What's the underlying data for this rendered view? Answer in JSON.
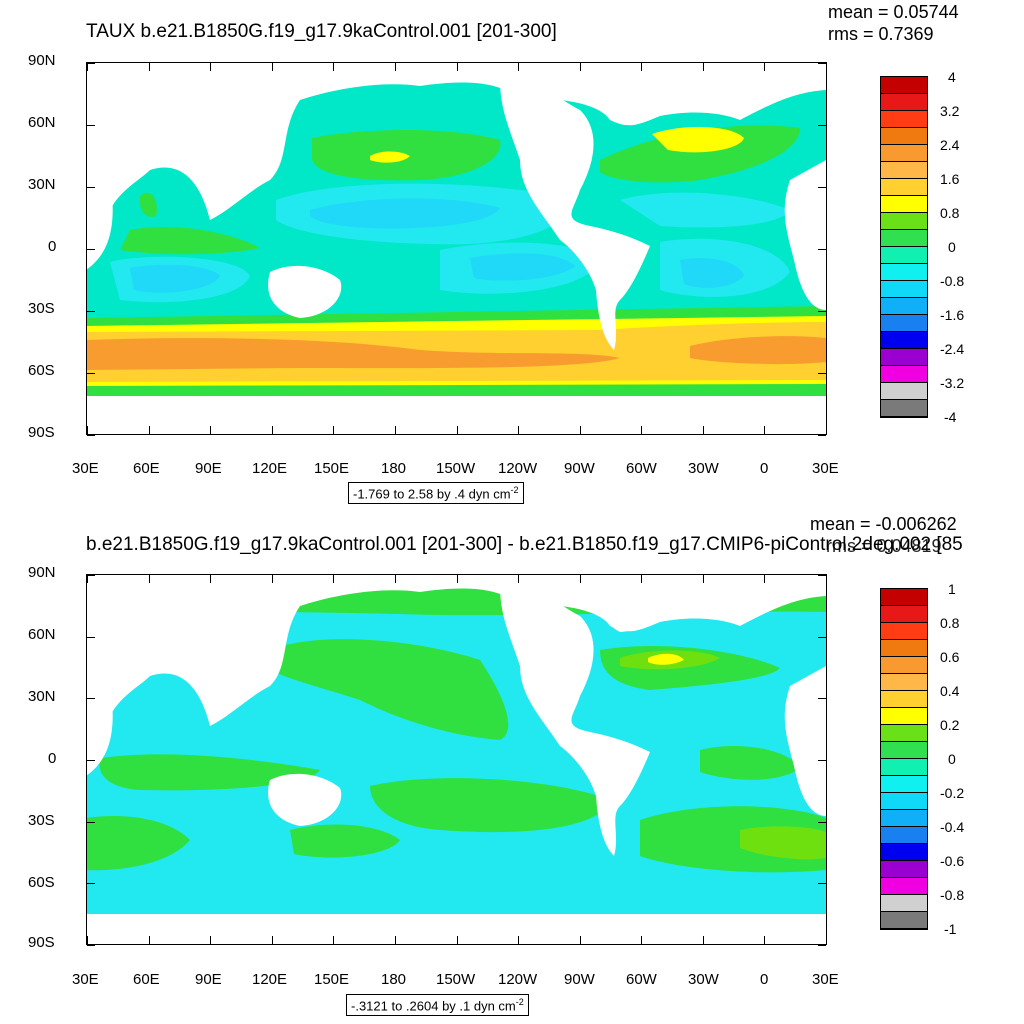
{
  "panels": [
    {
      "title": "TAUX b.e21.B1850G.f19_g17.9kaControl.001 [201-300]",
      "stats": {
        "mean": "mean = 0.05744",
        "rms": "rms = 0.7369"
      },
      "range_text": "-1.769 to 2.58 by .4 dyn cm",
      "range_sup": "-2",
      "colorbar_labels": [
        "4",
        "3.2",
        "2.4",
        "1.6",
        "0.8",
        "0",
        "-0.8",
        "-1.6",
        "-2.4",
        "-3.2",
        "-4"
      ]
    },
    {
      "title": "b.e21.B1850G.f19_g17.9kaControl.001 [201-300] - b.e21.B1850.f19_g17.CMIP6-piControl.2deg.002 [85",
      "stats": {
        "mean": "mean = -0.006262",
        "rms": "rms = 0.04819"
      },
      "range_text": "-.3121 to .2604 by .1 dyn cm",
      "range_sup": "-2",
      "colorbar_labels": [
        "1",
        "0.8",
        "0.6",
        "0.4",
        "0.2",
        "0",
        "-0.2",
        "-0.4",
        "-0.6",
        "-0.8",
        "-1"
      ]
    }
  ],
  "lat_labels": [
    "90N",
    "60N",
    "30N",
    "0",
    "30S",
    "60S",
    "90S"
  ],
  "lon_labels": [
    "30E",
    "60E",
    "90E",
    "120E",
    "150E",
    "180",
    "150W",
    "120W",
    "90W",
    "60W",
    "30W",
    "0",
    "30E"
  ],
  "colorbar_colors": [
    "#c40000",
    "#e81818",
    "#ff3c14",
    "#f07a10",
    "#f89a30",
    "#ffb848",
    "#ffd030",
    "#ffff00",
    "#6ae018",
    "#30e050",
    "#10f0b0",
    "#10f0f0",
    "#10d8f8",
    "#10b0f8",
    "#1880f0",
    "#0000f0",
    "#9a00d0",
    "#f000e0",
    "#d0d0d0",
    "#7a7a7a"
  ],
  "map_colors": {
    "ocean_base": "#00e8c8",
    "neg_band": "#22e8f0",
    "neg_strong": "#20d8f8",
    "pos_green": "#30e040",
    "pos_lime": "#6ee010",
    "yellow": "#ffff00",
    "gold": "#ffd030",
    "orange": "#f89c30",
    "land": "#ffffff"
  }
}
